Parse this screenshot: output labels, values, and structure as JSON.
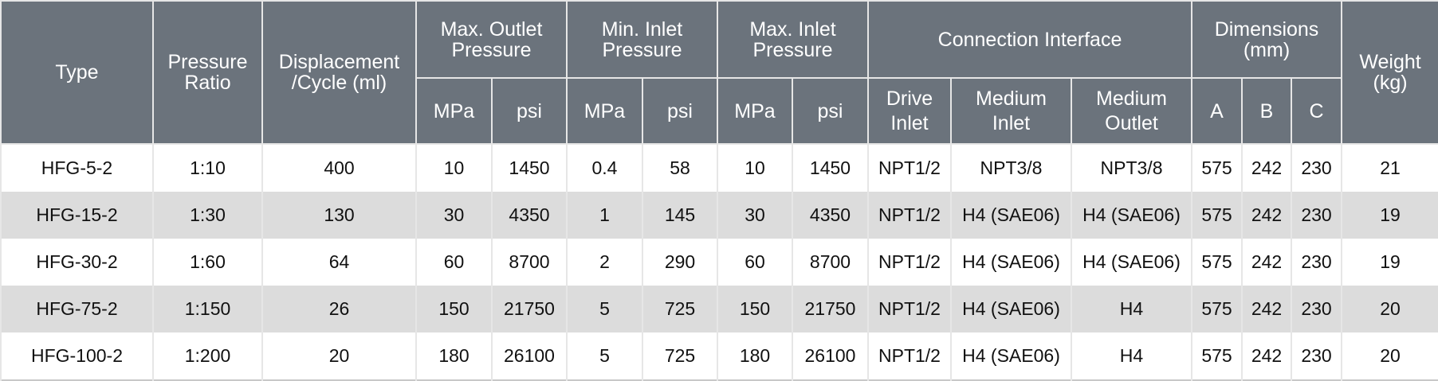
{
  "header": {
    "type": "Type",
    "pressure_ratio": "Pressure Ratio",
    "displacement": "Displacement /Cycle (ml)",
    "max_outlet": "Max. Outlet Pressure",
    "min_inlet": "Min. Inlet Pressure",
    "max_inlet": "Max. Inlet Pressure",
    "connection": "Connection Interface",
    "dimensions": "Dimensions (mm)",
    "weight": "Weight (kg)",
    "mpa": "MPa",
    "psi": "psi",
    "drive_inlet": "Drive Inlet",
    "medium_inlet": "Medium Inlet",
    "medium_outlet": "Medium Outlet",
    "a": "A",
    "b": "B",
    "c": "C"
  },
  "rows": [
    [
      "HFG-5-2",
      "1:10",
      "400",
      "10",
      "1450",
      "0.4",
      "58",
      "10",
      "1450",
      "NPT1/2",
      "NPT3/8",
      "NPT3/8",
      "575",
      "242",
      "230",
      "21"
    ],
    [
      "HFG-15-2",
      "1:30",
      "130",
      "30",
      "4350",
      "1",
      "145",
      "30",
      "4350",
      "NPT1/2",
      "H4 (SAE06)",
      "H4 (SAE06)",
      "575",
      "242",
      "230",
      "19"
    ],
    [
      "HFG-30-2",
      "1:60",
      "64",
      "60",
      "8700",
      "2",
      "290",
      "60",
      "8700",
      "NPT1/2",
      "H4 (SAE06)",
      "H4 (SAE06)",
      "575",
      "242",
      "230",
      "19"
    ],
    [
      "HFG-75-2",
      "1:150",
      "26",
      "150",
      "21750",
      "5",
      "725",
      "150",
      "21750",
      "NPT1/2",
      "H4 (SAE06)",
      "H4",
      "575",
      "242",
      "230",
      "20"
    ],
    [
      "HFG-100-2",
      "1:200",
      "20",
      "180",
      "26100",
      "5",
      "725",
      "180",
      "26100",
      "NPT1/2",
      "H4 (SAE06)",
      "H4",
      "575",
      "242",
      "230",
      "20"
    ]
  ],
  "colors": {
    "header_bg": "#6b737c",
    "stripe": "#dcdcdc"
  }
}
